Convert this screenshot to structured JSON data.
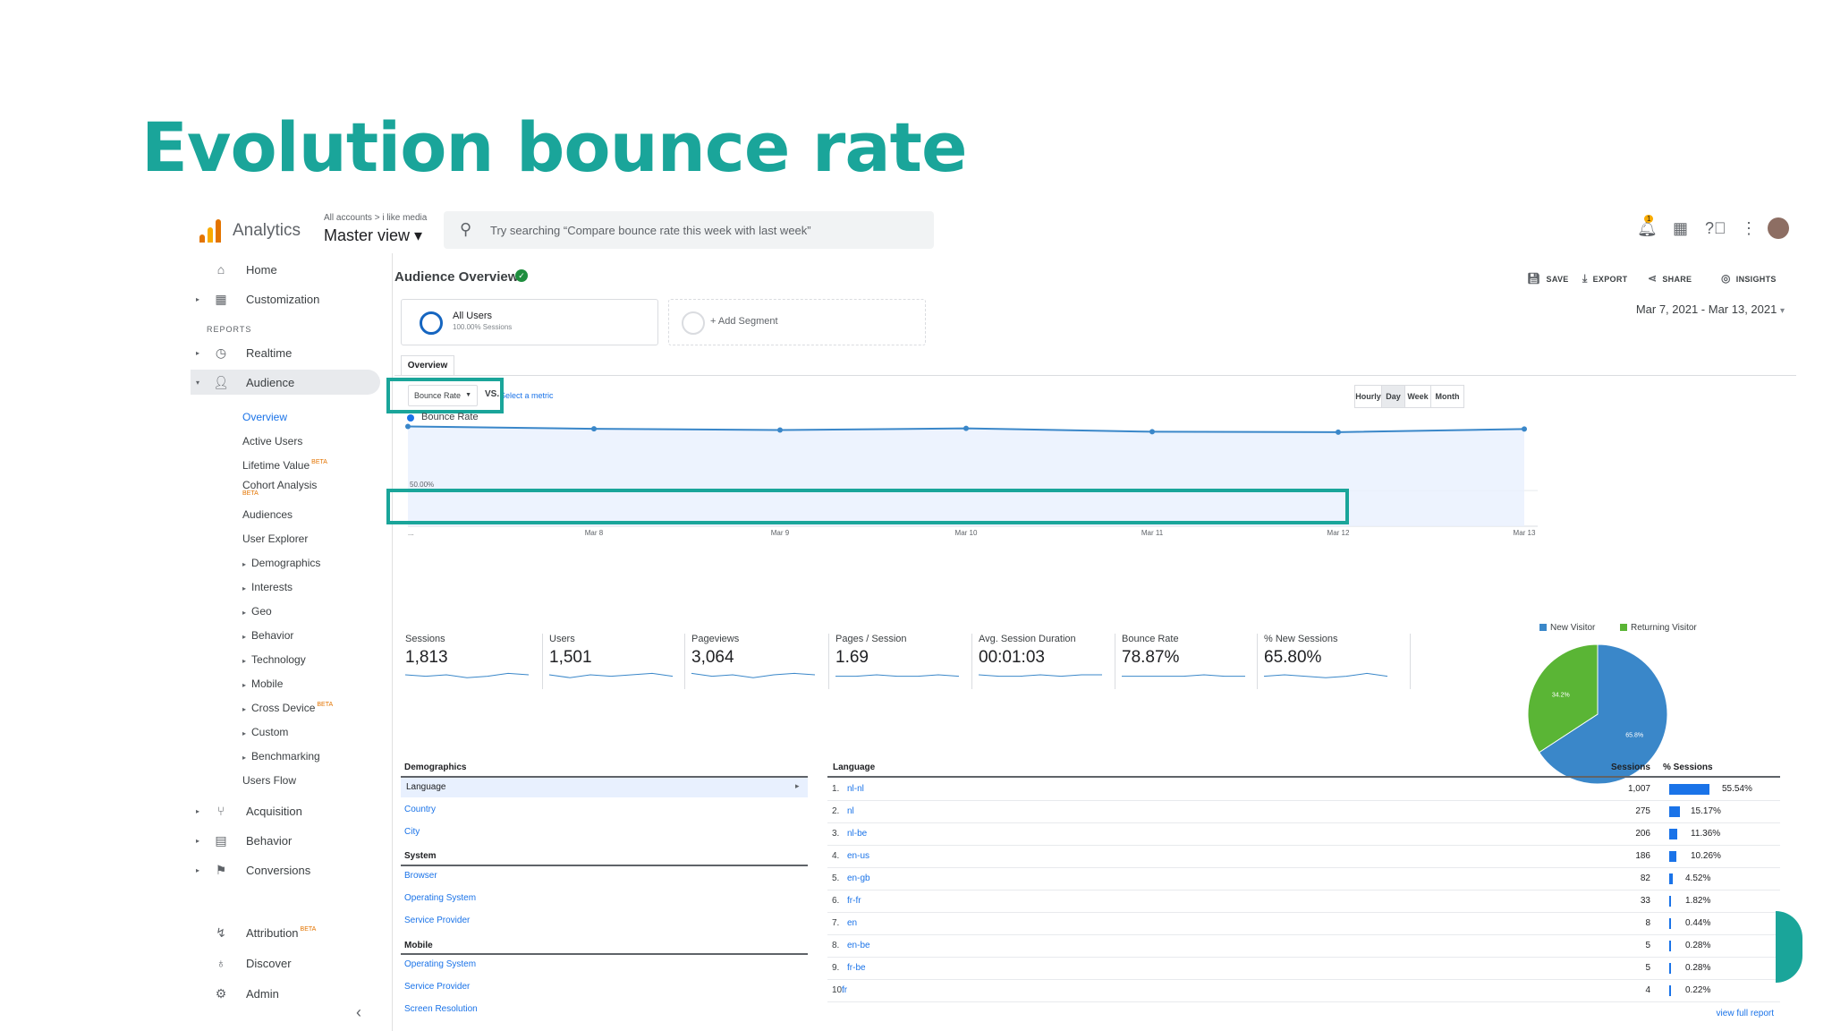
{
  "slide_title": "Evolution bounce rate",
  "topbar": {
    "app_name": "Analytics",
    "account_path": "All accounts > i like media",
    "view_name": "Master view ▾",
    "search_placeholder": "Try searching “Compare bounce rate this week with last week”",
    "notification_count": "1"
  },
  "sidebar": {
    "top_items": [
      {
        "label": "Home",
        "icon": "home-icon"
      },
      {
        "label": "Customization",
        "icon": "customization-icon"
      }
    ],
    "reports_heading": "REPORTS",
    "realtime": "Realtime",
    "audience": "Audience",
    "audience_sub": [
      {
        "label": "Overview"
      },
      {
        "label": "Active Users"
      },
      {
        "label": "Lifetime Value",
        "beta": "BETA"
      },
      {
        "label": "Cohort Analysis",
        "beta": "BETA"
      },
      {
        "label": "Audiences"
      },
      {
        "label": "User Explorer"
      },
      {
        "label": "Demographics"
      },
      {
        "label": "Interests"
      },
      {
        "label": "Geo"
      },
      {
        "label": "Behavior"
      },
      {
        "label": "Technology"
      },
      {
        "label": "Mobile"
      },
      {
        "label": "Cross Device",
        "beta": "BETA"
      },
      {
        "label": "Custom"
      },
      {
        "label": "Benchmarking"
      },
      {
        "label": "Users Flow"
      }
    ],
    "bottom_items": [
      {
        "label": "Acquisition"
      },
      {
        "label": "Behavior"
      },
      {
        "label": "Conversions"
      },
      {
        "label": "Attribution",
        "beta": "BETA"
      },
      {
        "label": "Discover"
      },
      {
        "label": "Admin"
      }
    ],
    "collapse": "‹"
  },
  "main": {
    "page_title": "Audience Overview",
    "actions": {
      "save": "SAVE",
      "export": "EXPORT",
      "share": "SHARE",
      "insights": "INSIGHTS"
    },
    "segment_name": "All Users",
    "segment_sub": "100.00% Sessions",
    "add_segment": "+ Add Segment",
    "date_range": "Mar 7, 2021 - Mar 13, 2021",
    "tab": "Overview",
    "metric_select": "Bounce Rate",
    "vs": "VS.",
    "select_metric": "Select a metric",
    "granularity": [
      "Hourly",
      "Day",
      "Week",
      "Month"
    ],
    "granularity_selected": "Day",
    "legend": "Bounce Rate"
  },
  "chart_data": {
    "type": "line",
    "series": [
      {
        "name": "Bounce Rate",
        "values": [
          80.5,
          79.4,
          78.8,
          79.6,
          78.0,
          77.8,
          79.3
        ]
      }
    ],
    "x": [
      "...",
      "Mar 8",
      "Mar 9",
      "Mar 10",
      "Mar 11",
      "Mar 12",
      "Mar 13"
    ],
    "y_ticks": [
      "50.00%"
    ],
    "ylim": [
      33,
      82
    ],
    "grid": true
  },
  "summary": [
    {
      "name": "Sessions",
      "value": "1,813"
    },
    {
      "name": "Users",
      "value": "1,501"
    },
    {
      "name": "Pageviews",
      "value": "3,064"
    },
    {
      "name": "Pages / Session",
      "value": "1.69"
    },
    {
      "name": "Avg. Session Duration",
      "value": "00:01:03"
    },
    {
      "name": "Bounce Rate",
      "value": "78.87%"
    },
    {
      "name": "% New Sessions",
      "value": "65.80%"
    }
  ],
  "pie": {
    "legend": [
      {
        "name": "New Visitor",
        "color": "#3a87c9"
      },
      {
        "name": "Returning Visitor",
        "color": "#5ab535"
      }
    ],
    "slices": [
      {
        "label": "65.8%",
        "value": 65.8
      },
      {
        "label": "34.2%",
        "value": 34.2
      }
    ]
  },
  "dimensions": {
    "demographics_heading": "Demographics",
    "selected": "Language",
    "demographics_links": [
      "Country",
      "City"
    ],
    "system_heading": "System",
    "system_links": [
      "Browser",
      "Operating System",
      "Service Provider"
    ],
    "mobile_heading": "Mobile",
    "mobile_links": [
      "Operating System",
      "Service Provider",
      "Screen Resolution"
    ]
  },
  "language_table": {
    "headers": {
      "language": "Language",
      "sessions": "Sessions",
      "pct": "% Sessions"
    },
    "rows": [
      {
        "n": "1.",
        "lang": "nl-nl",
        "sessions": "1,007",
        "pct": "55.54%",
        "v": 55.54
      },
      {
        "n": "2.",
        "lang": "nl",
        "sessions": "275",
        "pct": "15.17%",
        "v": 15.17
      },
      {
        "n": "3.",
        "lang": "nl-be",
        "sessions": "206",
        "pct": "11.36%",
        "v": 11.36
      },
      {
        "n": "4.",
        "lang": "en-us",
        "sessions": "186",
        "pct": "10.26%",
        "v": 10.26
      },
      {
        "n": "5.",
        "lang": "en-gb",
        "sessions": "82",
        "pct": "4.52%",
        "v": 4.52
      },
      {
        "n": "6.",
        "lang": "fr-fr",
        "sessions": "33",
        "pct": "1.82%",
        "v": 1.82
      },
      {
        "n": "7.",
        "lang": "en",
        "sessions": "8",
        "pct": "0.44%",
        "v": 0.44
      },
      {
        "n": "8.",
        "lang": "en-be",
        "sessions": "5",
        "pct": "0.28%",
        "v": 0.28
      },
      {
        "n": "9.",
        "lang": "fr-be",
        "sessions": "5",
        "pct": "0.28%",
        "v": 0.28
      },
      {
        "n": "10.",
        "lang": "fr",
        "sessions": "4",
        "pct": "0.22%",
        "v": 0.22
      }
    ],
    "full_report": "view full report"
  }
}
